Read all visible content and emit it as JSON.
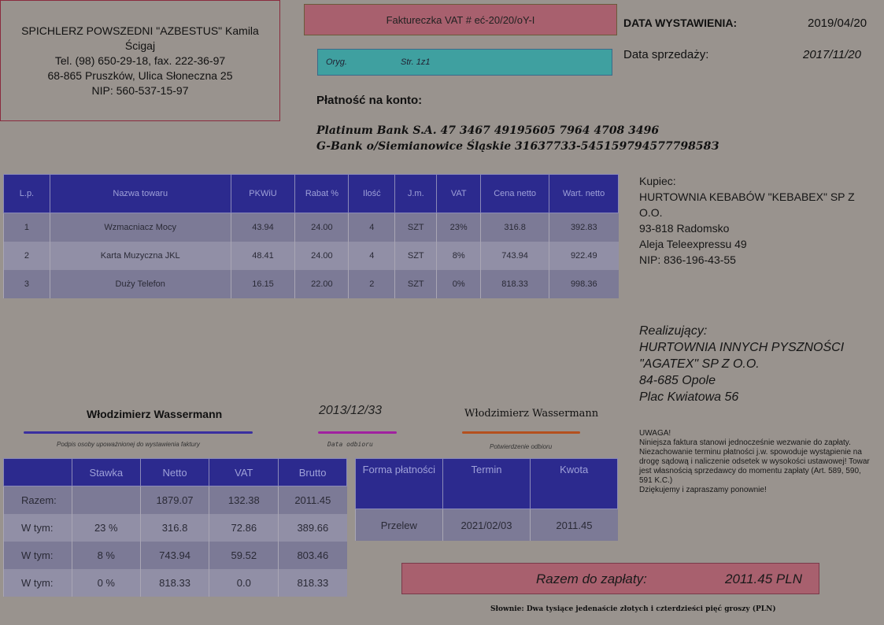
{
  "seller": {
    "name": "SPICHLERZ POWSZEDNI \"AZBESTUS\" Kamila Ścigaj",
    "phone": "Tel. (98) 650-29-18, fax. 222-36-97",
    "address": "68-865 Pruszków, Ulica Słoneczna 25",
    "nip": "NIP: 560-537-15-97"
  },
  "invoice": {
    "title": "Faktureczka VAT # eć-20/20/oY-I",
    "copy_label": "Oryg.",
    "page_label": "Str. 1z1"
  },
  "dates": {
    "issue_label": "DATA WYSTAWIENIA:",
    "issue_value": "2019/04/20",
    "sale_label": "Data sprzedaży:",
    "sale_value": "2017/11/20"
  },
  "payment": {
    "title": "Płatność na konto:",
    "bank1": "Platinum Bank S.A. 47 3467 49195605 7964 4708 3496",
    "bank2": "G-Bank o/Siemianowice Śląskie 31637733-54515979457779858З"
  },
  "items": {
    "headers": [
      "L.p.",
      "Nazwa towaru",
      "PKWiU",
      "Rabat %",
      "Ilość",
      "J.m.",
      "VAT",
      "Cena netto",
      "Wart. netto"
    ],
    "rows": [
      [
        "1",
        "Wzmacniacz Mocy",
        "43.94",
        "24.00",
        "4",
        "SZT",
        "23%",
        "316.8",
        "392.83"
      ],
      [
        "2",
        "Karta Muzyczna JKL",
        "48.41",
        "24.00",
        "4",
        "SZT",
        "8%",
        "743.94",
        "922.49"
      ],
      [
        "3",
        "Duży Telefon",
        "16.15",
        "22.00",
        "2",
        "SZT",
        "0%",
        "818.33",
        "998.36"
      ]
    ]
  },
  "buyer": {
    "label": "Kupiec:",
    "name": "HURTOWNIA KEBABÓW \"KEBABEX\" SP Z O.O.",
    "city": "93-818 Radomsko",
    "street": "Aleja Teleexpressu 49",
    "nip": "NIP: 836-196-43-55"
  },
  "realizer": {
    "label": "Realizujący:",
    "name1": "HURTOWNIA INNYCH PYSZNOŚCI",
    "name2": "\"AGATEX\" SP Z O.O.",
    "city": "84-685 Opole",
    "street": "Plac Kwiatowa 56"
  },
  "signatures": {
    "issuer_name": "Włodzimierz Wassermann",
    "issuer_caption": "Podpis osoby upoważnionej do wystawienia faktury",
    "receipt_date": "2013/12/33",
    "receipt_date_caption": "Data odbioru",
    "receiver_name": "Włodzimierz Wassermann",
    "receiver_caption": "Potwierdzenie odbioru"
  },
  "summary": {
    "headers": [
      "",
      "Stawka",
      "Netto",
      "VAT",
      "Brutto"
    ],
    "rows": [
      [
        "Razem:",
        "",
        "1879.07",
        "132.38",
        "2011.45"
      ],
      [
        "W tym:",
        "23 %",
        "316.8",
        "72.86",
        "389.66"
      ],
      [
        "W tym:",
        "8 %",
        "743.94",
        "59.52",
        "803.46"
      ],
      [
        "W tym:",
        "0 %",
        "818.33",
        "0.0",
        "818.33"
      ]
    ]
  },
  "payment_form": {
    "headers": [
      "Forma płatności",
      "Termin",
      "Kwota"
    ],
    "row": [
      "Przelew",
      "2021/02/03",
      "2011.45"
    ]
  },
  "notice": {
    "title": "UWAGA!",
    "body": "Niniejsza faktura stanowi jednocześnie wezwanie do zapłaty. Niezachowanie terminu płatności j.w. spowoduje wystąpienie na drogę sądową i naliczenie odsetek w wysokości ustawowej! Towar jest własnością sprzedawcy do momentu zapłaty (Art. 589, 590, 591 K.C.)",
    "thanks": "Dziękujemy i zapraszamy ponownie!"
  },
  "total": {
    "label": "Razem do zapłaty:",
    "value": "2011.45 PLN"
  },
  "words": "Słownie: Dwa tysiące jedenaście złotych i czterdzieści pięć groszy (PLN)",
  "colors": {
    "page_bg": "#99938e",
    "header_fill": "#2c2a8e",
    "title_fill": "#a8606e",
    "orig_fill": "#3fa0a0",
    "issuer_line": "#3a2fa0",
    "date_line": "#a020a0",
    "receiver_line": "#b4501e"
  }
}
